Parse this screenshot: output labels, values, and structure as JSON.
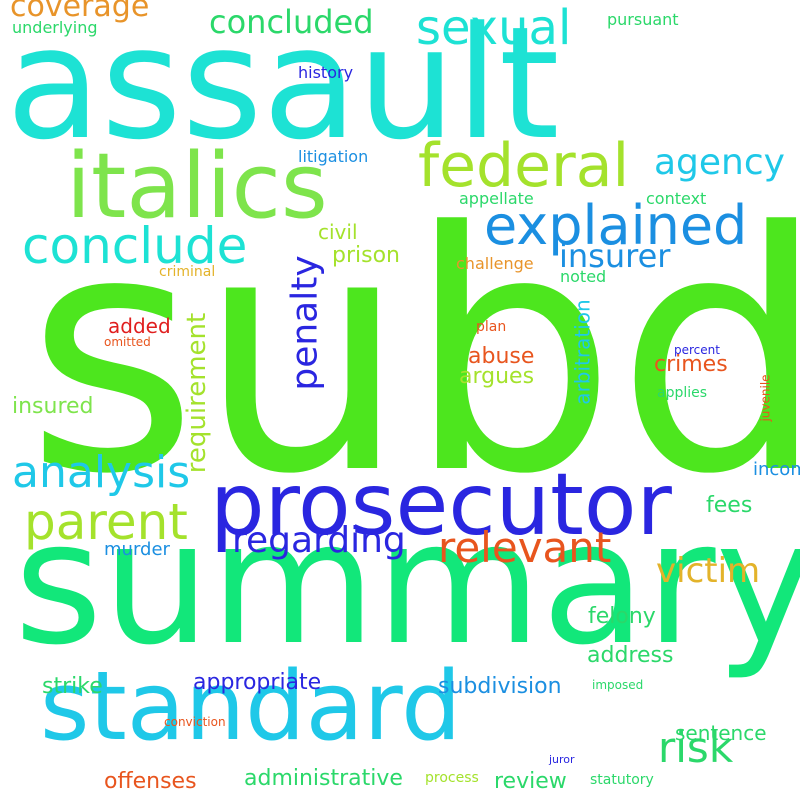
{
  "palette": {
    "cyan": "#1de2d4",
    "green": "#4de61e",
    "lime": "#a4e22c",
    "lightgreen": "#7ee44c",
    "mint": "#12e77a",
    "sky": "#1fc8e8",
    "blue": "#1b8fe1",
    "indigo": "#2a26e0",
    "orange": "#e8942a",
    "gold": "#e3b32a",
    "red": "#e03a12",
    "darkred": "#e01e1e",
    "yellow": "#d8e428"
  },
  "words": [
    {
      "text": "subd",
      "color": "#4de61e",
      "weight": 300
    },
    {
      "text": "summary",
      "color": "#12e77a",
      "weight": 230
    },
    {
      "text": "assault",
      "color": "#1de2d4",
      "weight": 200
    },
    {
      "text": "prosecutor",
      "color": "#2a26e0",
      "weight": 120
    },
    {
      "text": "standard",
      "color": "#1fc8e8",
      "weight": 120
    },
    {
      "text": "italics",
      "color": "#7ee44c",
      "weight": 110
    },
    {
      "text": "explained",
      "color": "#1b8fe1",
      "weight": 70
    },
    {
      "text": "conclude",
      "color": "#1de2d4",
      "weight": 65
    },
    {
      "text": "federal",
      "color": "#a4e22c",
      "weight": 62
    },
    {
      "text": "parent",
      "color": "#a4e22c",
      "weight": 58
    },
    {
      "text": "sexual",
      "color": "#1de2d4",
      "weight": 52
    },
    {
      "text": "analysis",
      "color": "#1fc8e8",
      "weight": 45
    },
    {
      "text": "relevant",
      "color": "#e8551e",
      "weight": 42
    },
    {
      "text": "regarding",
      "color": "#2a26e0",
      "weight": 40
    },
    {
      "text": "agency",
      "color": "#1fc8e8",
      "weight": 38
    },
    {
      "text": "concluded",
      "color": "#2bd86a",
      "weight": 36
    },
    {
      "text": "victim",
      "color": "#e3b32a",
      "weight": 34
    },
    {
      "text": "risk",
      "color": "#2bd86a",
      "weight": 34
    },
    {
      "text": "insurer",
      "color": "#1b8fe1",
      "weight": 32
    },
    {
      "text": "penalty",
      "color": "#2a26e0",
      "weight": 32
    },
    {
      "text": "coverage",
      "color": "#e8942a",
      "weight": 30
    },
    {
      "text": "requirement",
      "color": "#a4e22c",
      "weight": 30
    },
    {
      "text": "subdivision",
      "color": "#1b8fe1",
      "weight": 26
    },
    {
      "text": "appropriate",
      "color": "#2a26e0",
      "weight": 26
    },
    {
      "text": "administrative",
      "color": "#2bd86a",
      "weight": 26
    },
    {
      "text": "offenses",
      "color": "#e8551e",
      "weight": 26
    },
    {
      "text": "insured",
      "color": "#7ee44c",
      "weight": 24
    },
    {
      "text": "prison",
      "color": "#a4e22c",
      "weight": 24
    },
    {
      "text": "crimes",
      "color": "#e8551e",
      "weight": 24
    },
    {
      "text": "abuse",
      "color": "#e8551e",
      "weight": 24
    },
    {
      "text": "argues",
      "color": "#a4e22c",
      "weight": 24
    },
    {
      "text": "fees",
      "color": "#2bd86a",
      "weight": 24
    },
    {
      "text": "felony",
      "color": "#2bd86a",
      "weight": 24
    },
    {
      "text": "address",
      "color": "#2bd86a",
      "weight": 24
    },
    {
      "text": "strike",
      "color": "#2bd86a",
      "weight": 24
    },
    {
      "text": "sentence",
      "color": "#2bd86a",
      "weight": 24
    },
    {
      "text": "review",
      "color": "#2bd86a",
      "weight": 24
    },
    {
      "text": "arbitration",
      "color": "#1fc8e8",
      "weight": 22
    },
    {
      "text": "civil",
      "color": "#a4e22c",
      "weight": 20
    },
    {
      "text": "added",
      "color": "#e01e1e",
      "weight": 20
    },
    {
      "text": "murder",
      "color": "#1b8fe1",
      "weight": 20
    },
    {
      "text": "income",
      "color": "#1b8fe1",
      "weight": 20
    },
    {
      "text": "history",
      "color": "#2a26e0",
      "weight": 18
    },
    {
      "text": "litigation",
      "color": "#1b8fe1",
      "weight": 18
    },
    {
      "text": "underlying",
      "color": "#2bd86a",
      "weight": 18
    },
    {
      "text": "pursuant",
      "color": "#2bd86a",
      "weight": 18
    },
    {
      "text": "appellate",
      "color": "#2bd86a",
      "weight": 18
    },
    {
      "text": "context",
      "color": "#2bd86a",
      "weight": 18
    },
    {
      "text": "challenge",
      "color": "#e8942a",
      "weight": 18
    },
    {
      "text": "noted",
      "color": "#2bd86a",
      "weight": 18
    },
    {
      "text": "criminal",
      "color": "#e3b32a",
      "weight": 16
    },
    {
      "text": "plan",
      "color": "#e8551e",
      "weight": 16
    },
    {
      "text": "applies",
      "color": "#2bd86a",
      "weight": 16
    },
    {
      "text": "process",
      "color": "#a4e22c",
      "weight": 16
    },
    {
      "text": "statutory",
      "color": "#2bd86a",
      "weight": 16
    },
    {
      "text": "imposed",
      "color": "#2bd86a",
      "weight": 14
    },
    {
      "text": "juvenile",
      "color": "#e8551e",
      "weight": 14
    },
    {
      "text": "omitted",
      "color": "#e8551e",
      "weight": 14
    },
    {
      "text": "percent",
      "color": "#2a26e0",
      "weight": 14
    },
    {
      "text": "conviction",
      "color": "#e8551e",
      "weight": 14
    },
    {
      "text": "juror",
      "color": "#2a26e0",
      "weight": 12
    }
  ]
}
